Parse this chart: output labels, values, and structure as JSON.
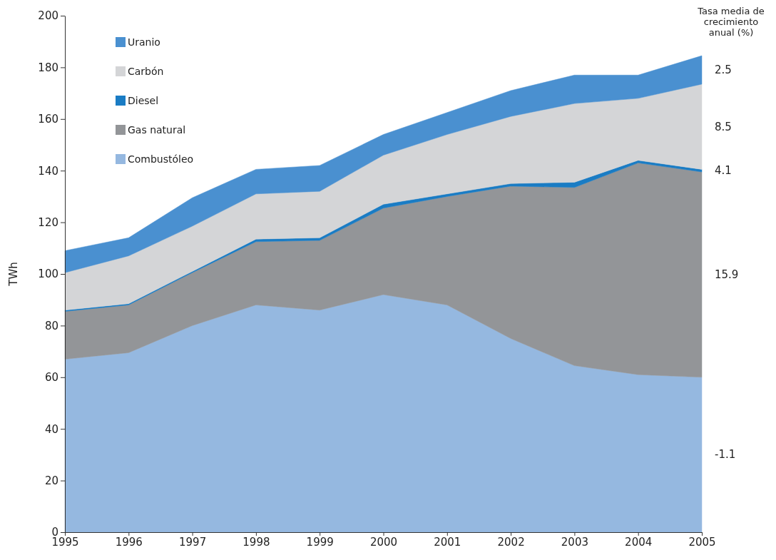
{
  "chart_data": {
    "type": "area",
    "stacked": true,
    "ylabel": "TWh",
    "x": [
      1995,
      1996,
      1997,
      1998,
      1999,
      2000,
      2001,
      2002,
      2003,
      2004,
      2005
    ],
    "xlim": [
      1995,
      2005
    ],
    "xticks": [
      1995,
      1996,
      1997,
      1998,
      1999,
      2000,
      2001,
      2002,
      2003,
      2004,
      2005
    ],
    "ylim": [
      0,
      200
    ],
    "yticks": [
      0,
      20,
      40,
      60,
      80,
      100,
      120,
      140,
      160,
      180,
      200
    ],
    "grid": false,
    "legend": "top left",
    "series": [
      {
        "name": "Combustóleo",
        "color": "#95b8e0",
        "values": [
          67,
          69.5,
          80,
          88,
          86,
          92,
          88,
          75,
          64.5,
          61,
          60
        ]
      },
      {
        "name": "Gas natural",
        "color": "#939598",
        "values": [
          18.5,
          18.5,
          20.5,
          24.5,
          27,
          33.5,
          42,
          59,
          69,
          82,
          79.5
        ]
      },
      {
        "name": "Diesel",
        "color": "#1a7cc4",
        "values": [
          0.5,
          0.5,
          0.5,
          1,
          1,
          1.5,
          1,
          1,
          2,
          1,
          1
        ]
      },
      {
        "name": "Carbón",
        "color": "#d4d5d7",
        "values": [
          14.5,
          18.5,
          17.5,
          17.5,
          18,
          19,
          23,
          26,
          30.5,
          24,
          33
        ]
      },
      {
        "name": "Uranio",
        "color": "#4a90d0",
        "values": [
          8.5,
          7,
          11,
          9.5,
          10,
          8,
          8.5,
          10,
          11,
          9,
          11
        ]
      }
    ],
    "annotations": [
      "Tasa media de crecimiento anual (%)",
      "2.5",
      "8.5",
      "4.1",
      "15.9",
      "-1.1"
    ]
  }
}
